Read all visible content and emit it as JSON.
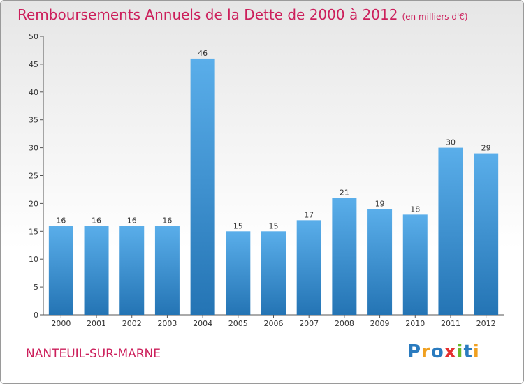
{
  "title": "Remboursements Annuels de la Dette de 2000 à 2012",
  "title_unit": "(en milliers d'€)",
  "city": "NANTEUIL-SUR-MARNE",
  "logo": {
    "text": "Proxiti",
    "letters": [
      {
        "char": "P",
        "color": "#2a7bbf"
      },
      {
        "char": "r",
        "color": "#f0a020"
      },
      {
        "char": "o",
        "color": "#2a7bbf"
      },
      {
        "char": "x",
        "color": "#e53030"
      },
      {
        "char": "i",
        "color": "#6ab82a"
      },
      {
        "char": "t",
        "color": "#2a7bbf"
      },
      {
        "char": "i",
        "color": "#f0a020"
      }
    ]
  },
  "colors": {
    "bar_light": "#5aaeea",
    "bar_dark": "#2474b4",
    "title": "#cc1f5b"
  },
  "chart_data": {
    "type": "bar",
    "categories": [
      "2000",
      "2001",
      "2002",
      "2003",
      "2004",
      "2005",
      "2006",
      "2007",
      "2008",
      "2009",
      "2010",
      "2011",
      "2012"
    ],
    "values": [
      16,
      16,
      16,
      16,
      46,
      15,
      15,
      17,
      21,
      19,
      18,
      30,
      29
    ],
    "ylim": [
      0,
      50
    ],
    "yticks": [
      0,
      5,
      10,
      15,
      20,
      25,
      30,
      35,
      40,
      45,
      50
    ],
    "grid": false,
    "legend": "none"
  }
}
